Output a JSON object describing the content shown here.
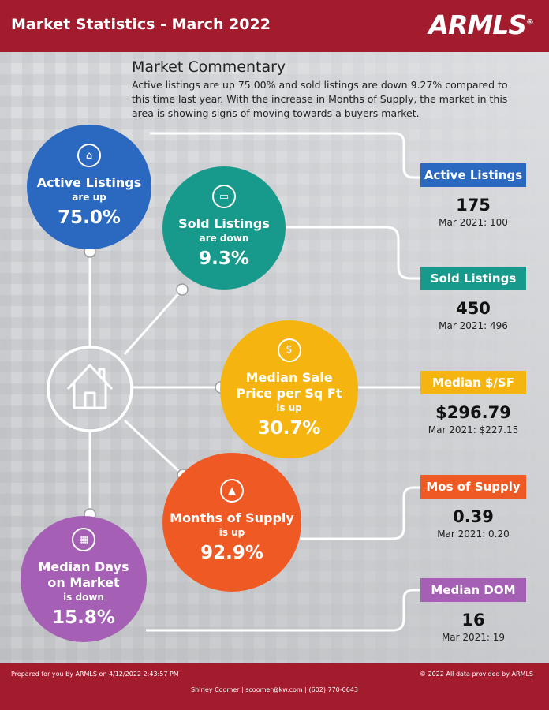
{
  "header": {
    "title": "Market Statistics - March 2022",
    "logo_text": "ARMLS",
    "logo_mark": "®",
    "bg_color": "#a31c2e"
  },
  "commentary": {
    "title": "Market Commentary",
    "text": "Active listings are up 75.00% and sold listings are down 9.27% compared to this time last year. With the increase in Months of Supply, the market in this area is showing signs of moving towards a buyers market."
  },
  "circles": {
    "active": {
      "label": "Active Listings",
      "sub": "are up",
      "pct": "75.0%",
      "color": "#2b68c0",
      "icon": "house-icon"
    },
    "sold": {
      "label": "Sold Listings",
      "sub": "are down",
      "pct": "9.3%",
      "color": "#179a8c",
      "icon": "sign-icon"
    },
    "price": {
      "label_1": "Median Sale",
      "label_2": "Price per Sq Ft",
      "sub": "is up",
      "pct": "30.7%",
      "color": "#f5b40f",
      "icon": "coin-icon"
    },
    "supply": {
      "label": "Months of Supply",
      "sub": "is up",
      "pct": "92.9%",
      "color": "#ef5a24",
      "icon": "chart-icon"
    },
    "dom": {
      "label_1": "Median Days",
      "label_2": "on Market",
      "sub": "is down",
      "pct": "15.8%",
      "color": "#a55fb5",
      "icon": "calendar-icon"
    }
  },
  "stats": {
    "active": {
      "title": "Active Listings",
      "value": "175",
      "previous": "Mar 2021: 100",
      "color": "#2b68c0"
    },
    "sold": {
      "title": "Sold Listings",
      "value": "450",
      "previous": "Mar 2021: 496",
      "color": "#179a8c"
    },
    "price": {
      "title": "Median $/SF",
      "value": "$296.79",
      "previous": "Mar 2021: $227.15",
      "color": "#f5b40f"
    },
    "supply": {
      "title": "Mos of Supply",
      "value": "0.39",
      "previous": "Mar 2021: 0.20",
      "color": "#ef5a24"
    },
    "dom": {
      "title": "Median DOM",
      "value": "16",
      "previous": "Mar 2021: 19",
      "color": "#a55fb5"
    }
  },
  "footer": {
    "prepared": "Prepared for you by ARMLS on 4/12/2022 2:43:57 PM",
    "copyright": "© 2022 All data provided by ARMLS",
    "contact": "Shirley Coomer | scoomer@kw.com | (602) 770-0643"
  }
}
